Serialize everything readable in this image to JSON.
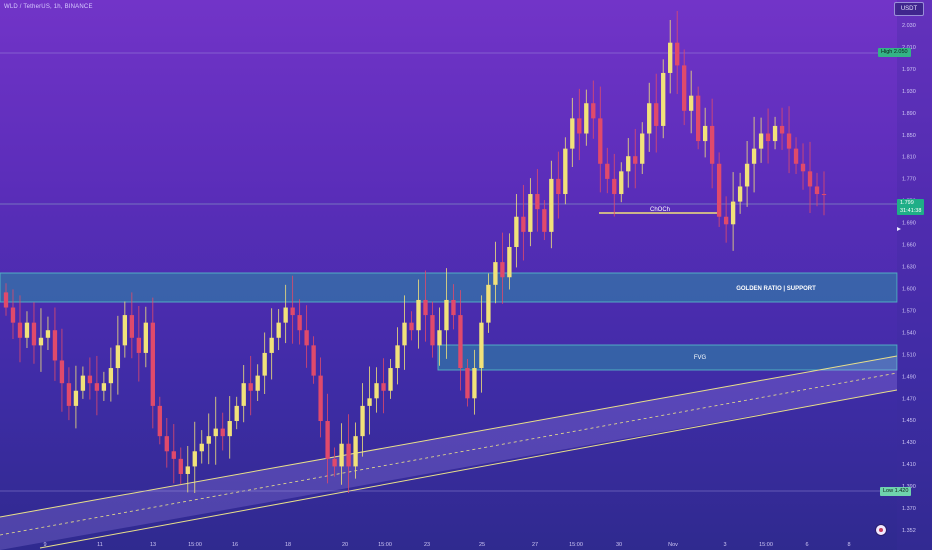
{
  "header": {
    "title": "WLD / TetherUS, 1h, BINANCE",
    "unit": "USDT"
  },
  "price_tags": {
    "high_label": "High",
    "high_value": "2.050",
    "low_label": "Low",
    "low_value": "1.420",
    "last_price": "1.799",
    "countdown": "31:41:38"
  },
  "annotations": {
    "choch": "ChOCh",
    "golden_ratio": "GOLDEN RATIO | SUPPORT",
    "fvg": "FVG"
  },
  "colors": {
    "bull": "#f1e27a",
    "bear": "#e04a6b",
    "zone_fill": "#2c8ea6",
    "channel_line": "#e9e08a"
  },
  "chart_data": {
    "type": "candlestick",
    "y_ticks": [
      "2.030",
      "2.010",
      "1.970",
      "1.930",
      "1.890",
      "1.850",
      "1.810",
      "1.770",
      "1.750",
      "1.690",
      "1.660",
      "1.630",
      "1.600",
      "1.570",
      "1.540",
      "1.510",
      "1.490",
      "1.470",
      "1.450",
      "1.430",
      "1.410",
      "1.390",
      "1.370",
      "1.352"
    ],
    "x_ticks": [
      "9",
      "11",
      "13",
      "15:00",
      "16",
      "18",
      "20",
      "15:00",
      "23",
      "25",
      "27",
      "15:00",
      "30",
      "Nov",
      "3",
      "15:00",
      "6",
      "8"
    ],
    "ylim": [
      1.352,
      2.03
    ],
    "high": 2.05,
    "low": 1.42,
    "last_price": 1.799,
    "levels": {
      "golden_ratio_support": [
        1.66,
        1.69
      ],
      "fvg": [
        1.555,
        1.585
      ],
      "choch": 1.788
    },
    "closes": [
      1.65,
      1.63,
      1.61,
      1.63,
      1.6,
      1.61,
      1.62,
      1.58,
      1.55,
      1.52,
      1.54,
      1.56,
      1.55,
      1.54,
      1.55,
      1.57,
      1.6,
      1.64,
      1.61,
      1.59,
      1.63,
      1.52,
      1.48,
      1.46,
      1.45,
      1.43,
      1.44,
      1.46,
      1.47,
      1.48,
      1.49,
      1.48,
      1.5,
      1.52,
      1.55,
      1.54,
      1.56,
      1.59,
      1.61,
      1.63,
      1.65,
      1.64,
      1.62,
      1.6,
      1.56,
      1.5,
      1.45,
      1.44,
      1.47,
      1.44,
      1.48,
      1.52,
      1.53,
      1.55,
      1.54,
      1.57,
      1.6,
      1.63,
      1.62,
      1.66,
      1.64,
      1.6,
      1.62,
      1.66,
      1.64,
      1.57,
      1.53,
      1.57,
      1.63,
      1.68,
      1.71,
      1.69,
      1.73,
      1.77,
      1.75,
      1.8,
      1.78,
      1.75,
      1.82,
      1.8,
      1.86,
      1.9,
      1.88,
      1.92,
      1.9,
      1.84,
      1.82,
      1.8,
      1.83,
      1.85,
      1.84,
      1.88,
      1.92,
      1.89,
      1.96,
      2.0,
      1.97,
      1.91,
      1.93,
      1.87,
      1.89,
      1.84,
      1.77,
      1.76,
      1.79,
      1.81,
      1.84,
      1.86,
      1.88,
      1.87,
      1.89,
      1.88,
      1.86,
      1.84,
      1.83,
      1.81,
      1.8,
      1.799
    ],
    "opens_follow_previous_close": true
  }
}
